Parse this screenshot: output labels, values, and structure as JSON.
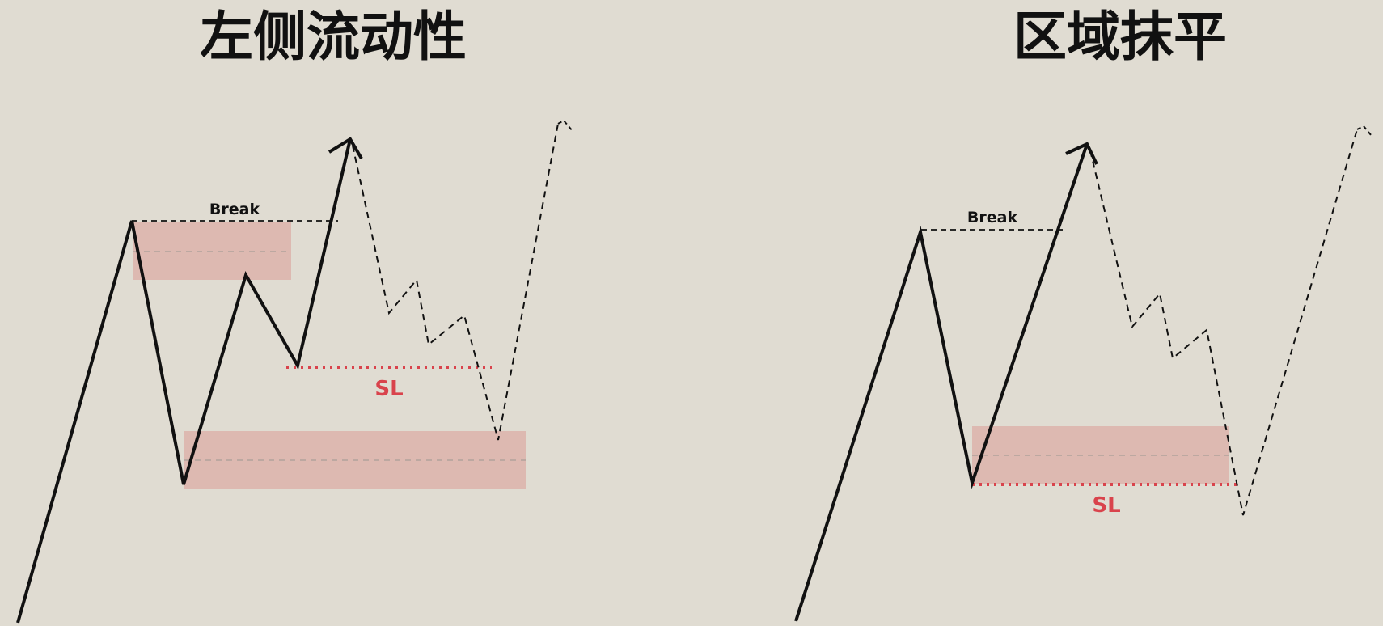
{
  "colors": {
    "background": "#e0dcd2",
    "zone_fill": "#ddb9b1",
    "stop_loss": "#d9434c",
    "line": "#111111",
    "midline": "#a89e98"
  },
  "panels": [
    {
      "id": "left",
      "title": "左侧流动性",
      "break_label": "Break",
      "sl_label": "SL"
    },
    {
      "id": "right",
      "title": "区域抹平",
      "break_label": "Break",
      "sl_label": "SL"
    }
  ]
}
